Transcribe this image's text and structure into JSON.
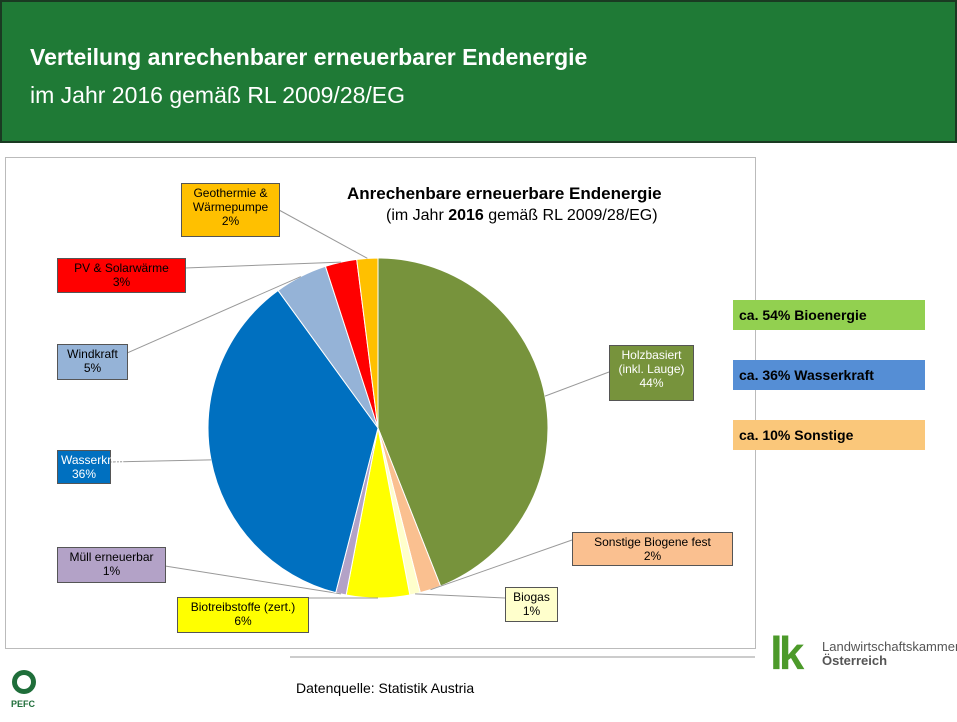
{
  "header": {
    "title": "Verteilung anrechenbarer erneuerbarer Endenergie",
    "subtitle": "im Jahr 2016 gemäß RL 2009/28/EG"
  },
  "chart_data": {
    "type": "pie",
    "title": "Anrechenbare erneuerbare Endenergie",
    "subtitle_parts": [
      "(im Jahr ",
      "2016",
      " gemäß RL 2009/28/EG)"
    ],
    "categories": [
      "Holzbasiert\n(inkl. Lauge)",
      "Sonstige Biogene fest",
      "Biogas",
      "Biotreibstoffe (zert.)",
      "Müll erneuerbar",
      "Wasserkraft",
      "Windkraft",
      "PV & Solarwärme",
      "Geothermie &\nWärmepumpe"
    ],
    "values": [
      44,
      2,
      1,
      6,
      1,
      36,
      5,
      3,
      2
    ],
    "value_labels": [
      "44%",
      "2%",
      "1%",
      "6%",
      "1%",
      "36%",
      "5%",
      "3%",
      "2%"
    ],
    "colors": [
      "#77933c",
      "#fac090",
      "#ffffcc",
      "#ffff00",
      "#b3a2c7",
      "#0070c0",
      "#95b3d7",
      "#ff0000",
      "#ffc000"
    ]
  },
  "annotations": [
    {
      "text": "ca. 54% Bioenergie",
      "color": "#92d050"
    },
    {
      "text": "ca. 36% Wasserkraft",
      "color": "#558ed5"
    },
    {
      "text": "ca. 10% Sonstige",
      "color": "#fac77a"
    }
  ],
  "footer": {
    "source": "Datenquelle: Statistik Austria",
    "logo_mark": "lk",
    "logo_line1": "Landwirtschaftskammer",
    "logo_line2": "Österreich",
    "pefc": "PEFC"
  }
}
